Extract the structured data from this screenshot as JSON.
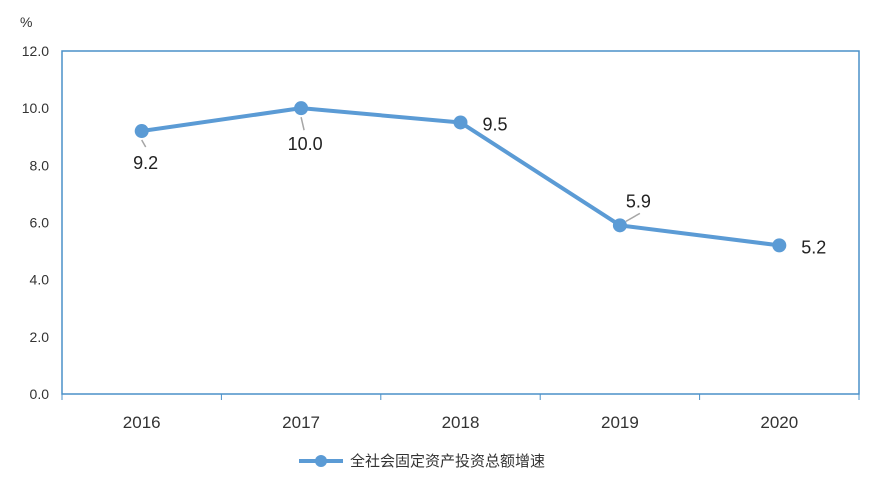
{
  "chart_data": {
    "type": "line",
    "categories": [
      "2016",
      "2017",
      "2018",
      "2019",
      "2020"
    ],
    "series": [
      {
        "name": "全社会固定资产投资总额增速",
        "values": [
          9.2,
          10.0,
          9.5,
          5.9,
          5.2
        ],
        "data_labels": [
          "9.2",
          "10.0",
          "9.5",
          "5.9",
          "5.2"
        ],
        "color": "#5b9bd5"
      }
    ],
    "y_unit": "%",
    "ylim": [
      0,
      12
    ],
    "y_ticks": [
      0,
      2,
      4,
      6,
      8,
      10,
      12
    ],
    "y_tick_labels": [
      "0.0",
      "2.0",
      "4.0",
      "6.0",
      "8.0",
      "10.0",
      "12.0"
    ],
    "grid": false,
    "legend_position": "bottom",
    "colors": {
      "line": "#5b9bd5",
      "axis_frame": "#4a90c8",
      "leader_line": "#a6a6a6"
    }
  }
}
